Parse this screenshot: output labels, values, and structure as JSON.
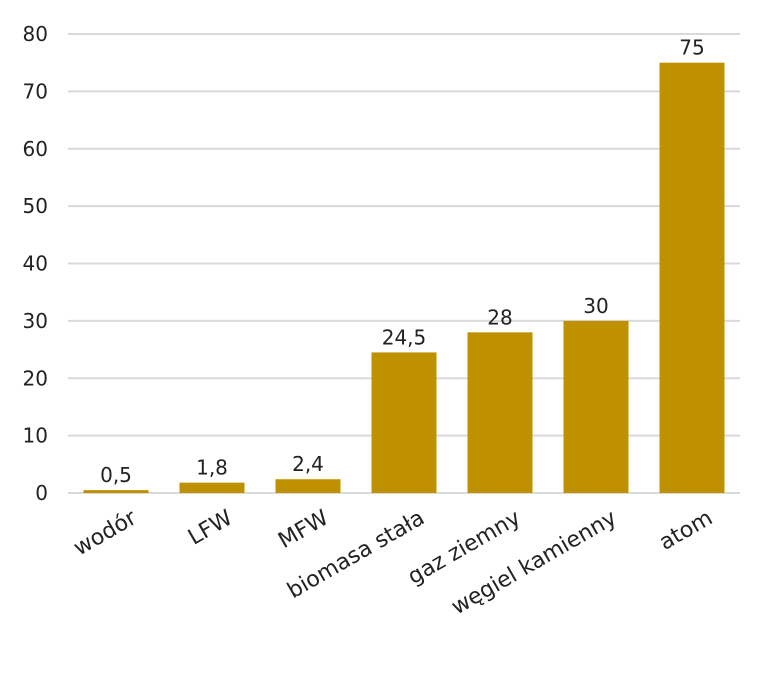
{
  "chart_data": {
    "type": "bar",
    "categories": [
      "wodór",
      "LFW",
      "MFW",
      "biomasa stała",
      "gaz ziemny",
      "węgiel kamienny",
      "atom"
    ],
    "values": [
      0.5,
      1.8,
      2.4,
      24.5,
      28,
      30,
      75
    ],
    "data_labels": [
      "0,5",
      "1,8",
      "2,4",
      "24,5",
      "28",
      "30",
      "75"
    ],
    "ylim": [
      0,
      80
    ],
    "yticks": [
      0,
      10,
      20,
      30,
      40,
      50,
      60,
      70,
      80
    ],
    "grid": true,
    "legend": "none",
    "bar_color": "#BF9000",
    "grid_color": "#D9D9D9"
  }
}
